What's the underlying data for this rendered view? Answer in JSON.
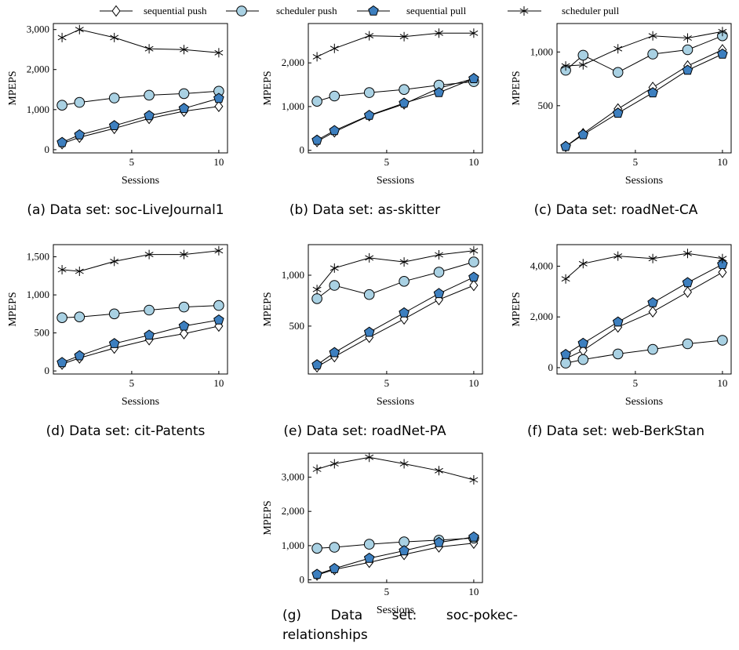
{
  "colors": {
    "push_fill": "#a9d1e3",
    "pull_fill": "#3d7fbf",
    "stroke": "#000000",
    "white": "#ffffff"
  },
  "legend": {
    "items": [
      {
        "label": "sequential push",
        "marker": "diamond-icon"
      },
      {
        "label": "scheduler push",
        "marker": "circle-icon"
      },
      {
        "label": "sequential pull",
        "marker": "pentagon-icon"
      },
      {
        "label": "scheduler pull",
        "marker": "star-icon"
      }
    ]
  },
  "chart_data": [
    {
      "type": "line",
      "caption": "(a) Data set: soc-LiveJournal1",
      "xlabel": "Sessions",
      "ylabel": "MPEPS",
      "x": [
        1,
        2,
        4,
        6,
        8,
        10
      ],
      "xticks": [
        5,
        10
      ],
      "xlim": [
        0.5,
        10.5
      ],
      "ylim": [
        -80,
        3150
      ],
      "yticks": [
        0,
        1000,
        2000,
        3000
      ],
      "ytick_labels": [
        "0",
        "1,000",
        "2,000",
        "3,000"
      ],
      "series": [
        {
          "name": "sequential push",
          "values": [
            150,
            310,
            530,
            780,
            960,
            1080
          ]
        },
        {
          "name": "scheduler push",
          "values": [
            1110,
            1180,
            1290,
            1360,
            1400,
            1460
          ]
        },
        {
          "name": "sequential pull",
          "values": [
            180,
            370,
            600,
            850,
            1030,
            1280
          ]
        },
        {
          "name": "scheduler pull",
          "values": [
            2800,
            3000,
            2800,
            2520,
            2500,
            2420
          ]
        }
      ]
    },
    {
      "type": "line",
      "caption": "(b) Data set: as-skitter",
      "xlabel": "Sessions",
      "ylabel": "MPEPS",
      "x": [
        1,
        2,
        4,
        6,
        8,
        10
      ],
      "xticks": [
        5,
        10
      ],
      "xlim": [
        0.5,
        10.5
      ],
      "ylim": [
        -60,
        2900
      ],
      "yticks": [
        0,
        1000,
        2000
      ],
      "ytick_labels": [
        "0",
        "1,000",
        "2,000"
      ],
      "series": [
        {
          "name": "sequential push",
          "values": [
            200,
            420,
            790,
            1060,
            1420,
            1640
          ]
        },
        {
          "name": "scheduler push",
          "values": [
            1120,
            1240,
            1320,
            1390,
            1490,
            1570
          ]
        },
        {
          "name": "sequential pull",
          "values": [
            230,
            450,
            800,
            1080,
            1320,
            1640
          ]
        },
        {
          "name": "scheduler pull",
          "values": [
            2140,
            2330,
            2620,
            2600,
            2680,
            2680
          ]
        }
      ]
    },
    {
      "type": "line",
      "caption": "(c) Data set: roadNet-CA",
      "xlabel": "Sessions",
      "ylabel": "MPEPS",
      "x": [
        1,
        2,
        4,
        6,
        8,
        10
      ],
      "xticks": [
        5,
        10
      ],
      "xlim": [
        0.5,
        10.5
      ],
      "ylim": [
        60,
        1265
      ],
      "yticks": [
        500,
        1000
      ],
      "ytick_labels": [
        "500",
        "1,000"
      ],
      "series": [
        {
          "name": "sequential push",
          "values": [
            120,
            240,
            470,
            670,
            870,
            1020
          ]
        },
        {
          "name": "scheduler push",
          "values": [
            830,
            970,
            810,
            980,
            1020,
            1150
          ]
        },
        {
          "name": "sequential pull",
          "values": [
            120,
            230,
            430,
            620,
            830,
            980
          ]
        },
        {
          "name": "scheduler pull",
          "values": [
            870,
            880,
            1030,
            1150,
            1130,
            1190
          ]
        }
      ]
    },
    {
      "type": "line",
      "caption": "(d) Data set: cit-Patents",
      "xlabel": "Sessions",
      "ylabel": "MPEPS",
      "x": [
        1,
        2,
        4,
        6,
        8,
        10
      ],
      "xticks": [
        5,
        10
      ],
      "xlim": [
        0.5,
        10.5
      ],
      "ylim": [
        -40,
        1660
      ],
      "yticks": [
        0,
        500,
        1000,
        1500
      ],
      "ytick_labels": [
        "0",
        "500",
        "1,000",
        "1,500"
      ],
      "series": [
        {
          "name": "sequential push",
          "values": [
            90,
            170,
            300,
            410,
            490,
            590
          ]
        },
        {
          "name": "scheduler push",
          "values": [
            700,
            710,
            750,
            800,
            840,
            860
          ]
        },
        {
          "name": "sequential pull",
          "values": [
            110,
            200,
            360,
            470,
            590,
            670
          ]
        },
        {
          "name": "scheduler pull",
          "values": [
            1330,
            1310,
            1440,
            1530,
            1530,
            1580
          ]
        }
      ]
    },
    {
      "type": "line",
      "caption": "(e) Data set: roadNet-PA",
      "xlabel": "Sessions",
      "ylabel": "MPEPS",
      "x": [
        1,
        2,
        4,
        6,
        8,
        10
      ],
      "xticks": [
        5,
        10
      ],
      "xlim": [
        0.5,
        10.5
      ],
      "ylim": [
        30,
        1300
      ],
      "yticks": [
        500,
        1000
      ],
      "ytick_labels": [
        "500",
        "1,000"
      ],
      "series": [
        {
          "name": "sequential push",
          "values": [
            100,
            200,
            390,
            570,
            760,
            900
          ]
        },
        {
          "name": "scheduler push",
          "values": [
            770,
            900,
            810,
            940,
            1030,
            1130
          ]
        },
        {
          "name": "sequential pull",
          "values": [
            120,
            240,
            440,
            630,
            820,
            980
          ]
        },
        {
          "name": "scheduler pull",
          "values": [
            860,
            1070,
            1170,
            1130,
            1200,
            1240
          ]
        }
      ]
    },
    {
      "type": "line",
      "caption": "(f) Data set: web-BerkStan",
      "xlabel": "Sessions",
      "ylabel": "MPEPS",
      "x": [
        1,
        2,
        4,
        6,
        8,
        10
      ],
      "xticks": [
        5,
        10
      ],
      "xlim": [
        0.5,
        10.5
      ],
      "ylim": [
        -250,
        4850
      ],
      "yticks": [
        0,
        2000,
        4000
      ],
      "ytick_labels": [
        "0",
        "2,000",
        "4,000"
      ],
      "series": [
        {
          "name": "sequential push",
          "values": [
            350,
            680,
            1600,
            2200,
            2980,
            3760
          ]
        },
        {
          "name": "scheduler push",
          "values": [
            180,
            320,
            540,
            720,
            940,
            1080
          ]
        },
        {
          "name": "sequential pull",
          "values": [
            520,
            960,
            1800,
            2560,
            3350,
            4070
          ]
        },
        {
          "name": "scheduler pull",
          "values": [
            3500,
            4100,
            4400,
            4300,
            4500,
            4300
          ]
        }
      ]
    },
    {
      "type": "line",
      "caption": "(g) Data set: soc-pokec-relationships",
      "xlabel": "Sessions",
      "ylabel": "MPEPS",
      "x": [
        1,
        2,
        4,
        6,
        8,
        10
      ],
      "xticks": [
        5,
        10
      ],
      "xlim": [
        0.5,
        10.5
      ],
      "ylim": [
        -80,
        3700
      ],
      "yticks": [
        0,
        1000,
        2000,
        3000
      ],
      "ytick_labels": [
        "0",
        "1,000",
        "2,000",
        "3,000"
      ],
      "series": [
        {
          "name": "sequential push",
          "values": [
            140,
            300,
            510,
            740,
            960,
            1070
          ]
        },
        {
          "name": "scheduler push",
          "values": [
            920,
            950,
            1040,
            1110,
            1160,
            1220
          ]
        },
        {
          "name": "sequential pull",
          "values": [
            160,
            330,
            630,
            850,
            1090,
            1250
          ]
        },
        {
          "name": "scheduler pull",
          "values": [
            3230,
            3390,
            3580,
            3390,
            3190,
            2920
          ]
        }
      ]
    }
  ]
}
